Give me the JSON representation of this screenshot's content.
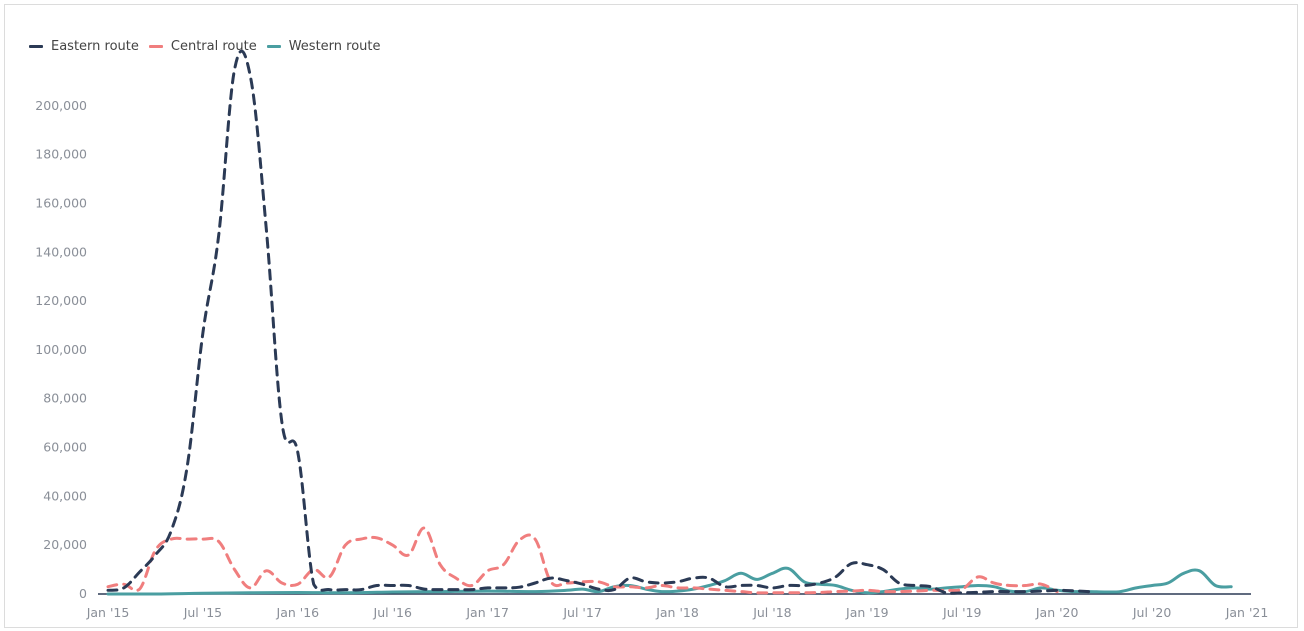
{
  "chart_data": {
    "type": "line",
    "title": "",
    "xlabel": "",
    "ylabel": "",
    "ylim": [
      0,
      220000
    ],
    "yticks": [
      0,
      20000,
      40000,
      60000,
      80000,
      100000,
      120000,
      140000,
      160000,
      180000,
      200000
    ],
    "ytick_labels": [
      "0",
      "20,000",
      "40,000",
      "60,000",
      "80,000",
      "100,000",
      "120,000",
      "140,000",
      "160,000",
      "180,000",
      "200,000"
    ],
    "xlim": [
      0,
      72
    ],
    "xticks": [
      {
        "x": 0,
        "label": "Jan '15"
      },
      {
        "x": 6,
        "label": "Jul '15"
      },
      {
        "x": 12,
        "label": "Jan '16"
      },
      {
        "x": 18,
        "label": "Jul '16"
      },
      {
        "x": 24,
        "label": "Jan '17"
      },
      {
        "x": 30,
        "label": "Jul '17"
      },
      {
        "x": 36,
        "label": "Jan '18"
      },
      {
        "x": 42,
        "label": "Jul '18"
      },
      {
        "x": 48,
        "label": "Jan '19"
      },
      {
        "x": 54,
        "label": "Jul '19"
      },
      {
        "x": 60,
        "label": "Jan '20"
      },
      {
        "x": 66,
        "label": "Jul '20"
      },
      {
        "x": 72,
        "label": "Jan '21"
      }
    ],
    "legend_position": "top-left",
    "grid": false,
    "series": [
      {
        "name": "Eastern route",
        "color": "#2b3a55",
        "dash": "dashed",
        "points": [
          [
            0,
            1500
          ],
          [
            1,
            2500
          ],
          [
            2,
            9000
          ],
          [
            3,
            16000
          ],
          [
            4,
            26000
          ],
          [
            5,
            52000
          ],
          [
            6,
            107000
          ],
          [
            7,
            147000
          ],
          [
            8,
            215000
          ],
          [
            9,
            212000
          ],
          [
            10,
            150000
          ],
          [
            11,
            70000
          ],
          [
            12,
            58000
          ],
          [
            13,
            4000
          ],
          [
            14,
            1800
          ],
          [
            15,
            1800
          ],
          [
            16,
            1800
          ],
          [
            17,
            3500
          ],
          [
            18,
            3500
          ],
          [
            19,
            3500
          ],
          [
            20,
            2000
          ],
          [
            21,
            1800
          ],
          [
            22,
            1800
          ],
          [
            23,
            1800
          ],
          [
            24,
            2500
          ],
          [
            25,
            2500
          ],
          [
            26,
            2800
          ],
          [
            27,
            4500
          ],
          [
            28,
            6500
          ],
          [
            29,
            5500
          ],
          [
            30,
            4000
          ],
          [
            31,
            2000
          ],
          [
            32,
            1800
          ],
          [
            33,
            6500
          ],
          [
            34,
            5000
          ],
          [
            35,
            4500
          ],
          [
            36,
            5000
          ],
          [
            37,
            6500
          ],
          [
            38,
            6500
          ],
          [
            39,
            3000
          ],
          [
            40,
            3500
          ],
          [
            41,
            3500
          ],
          [
            42,
            2500
          ],
          [
            43,
            3500
          ],
          [
            44,
            3500
          ],
          [
            45,
            4500
          ],
          [
            46,
            7000
          ],
          [
            47,
            12500
          ],
          [
            48,
            12000
          ],
          [
            49,
            10000
          ],
          [
            50,
            4500
          ],
          [
            51,
            3500
          ],
          [
            52,
            3000
          ],
          [
            53,
            500
          ],
          [
            54,
            500
          ],
          [
            55,
            700
          ],
          [
            56,
            1000
          ],
          [
            57,
            1000
          ],
          [
            58,
            1000
          ],
          [
            59,
            1200
          ],
          [
            60,
            1500
          ],
          [
            61,
            1300
          ],
          [
            62,
            1000
          ]
        ]
      },
      {
        "name": "Central route",
        "color": "#f07e7e",
        "dash": "dashed",
        "points": [
          [
            0,
            3000
          ],
          [
            1,
            4000
          ],
          [
            2,
            2000
          ],
          [
            3,
            18000
          ],
          [
            4,
            22500
          ],
          [
            5,
            22500
          ],
          [
            6,
            22500
          ],
          [
            7,
            21500
          ],
          [
            8,
            10000
          ],
          [
            9,
            2500
          ],
          [
            10,
            9500
          ],
          [
            11,
            4500
          ],
          [
            12,
            4000
          ],
          [
            13,
            10000
          ],
          [
            14,
            7000
          ],
          [
            15,
            20000
          ],
          [
            16,
            22500
          ],
          [
            17,
            23000
          ],
          [
            18,
            20000
          ],
          [
            19,
            16000
          ],
          [
            20,
            27000
          ],
          [
            21,
            12000
          ],
          [
            22,
            6500
          ],
          [
            23,
            3500
          ],
          [
            24,
            9500
          ],
          [
            25,
            12000
          ],
          [
            26,
            22000
          ],
          [
            27,
            22500
          ],
          [
            28,
            5000
          ],
          [
            29,
            4500
          ],
          [
            30,
            5000
          ],
          [
            31,
            5000
          ],
          [
            32,
            3000
          ],
          [
            33,
            3000
          ],
          [
            34,
            2500
          ],
          [
            35,
            3500
          ],
          [
            36,
            2500
          ],
          [
            37,
            2500
          ],
          [
            38,
            2000
          ],
          [
            39,
            1500
          ],
          [
            40,
            1000
          ],
          [
            41,
            500
          ],
          [
            42,
            500
          ],
          [
            43,
            500
          ],
          [
            44,
            500
          ],
          [
            45,
            600
          ],
          [
            46,
            1000
          ],
          [
            47,
            1200
          ],
          [
            48,
            1500
          ],
          [
            49,
            1000
          ],
          [
            50,
            1000
          ],
          [
            51,
            1200
          ],
          [
            52,
            1500
          ],
          [
            53,
            1500
          ],
          [
            54,
            2000
          ],
          [
            55,
            7000
          ],
          [
            56,
            4500
          ],
          [
            57,
            3500
          ],
          [
            58,
            3500
          ],
          [
            59,
            4000
          ],
          [
            60,
            1000
          ]
        ]
      },
      {
        "name": "Western route",
        "color": "#4a9ea1",
        "dash": "solid",
        "points": [
          [
            0,
            0
          ],
          [
            3,
            0
          ],
          [
            6,
            300
          ],
          [
            9,
            500
          ],
          [
            12,
            600
          ],
          [
            15,
            500
          ],
          [
            18,
            800
          ],
          [
            21,
            1000
          ],
          [
            24,
            1200
          ],
          [
            27,
            1000
          ],
          [
            29,
            1500
          ],
          [
            30,
            2000
          ],
          [
            31,
            1000
          ],
          [
            32,
            3000
          ],
          [
            33,
            3500
          ],
          [
            34,
            2000
          ],
          [
            35,
            1000
          ],
          [
            36,
            1200
          ],
          [
            37,
            2000
          ],
          [
            38,
            3500
          ],
          [
            39,
            5500
          ],
          [
            40,
            8500
          ],
          [
            41,
            6000
          ],
          [
            42,
            8500
          ],
          [
            43,
            10500
          ],
          [
            44,
            5000
          ],
          [
            45,
            4000
          ],
          [
            46,
            3500
          ],
          [
            47,
            1500
          ],
          [
            48,
            500
          ],
          [
            49,
            1000
          ],
          [
            50,
            2000
          ],
          [
            51,
            2500
          ],
          [
            52,
            2000
          ],
          [
            53,
            2500
          ],
          [
            54,
            3000
          ],
          [
            55,
            3500
          ],
          [
            56,
            3000
          ],
          [
            57,
            1200
          ],
          [
            58,
            1000
          ],
          [
            59,
            2500
          ],
          [
            60,
            1500
          ],
          [
            61,
            1000
          ],
          [
            62,
            1000
          ],
          [
            63,
            800
          ],
          [
            64,
            1000
          ],
          [
            65,
            2500
          ],
          [
            66,
            3500
          ],
          [
            67,
            4500
          ],
          [
            68,
            8500
          ],
          [
            69,
            9500
          ],
          [
            70,
            3500
          ],
          [
            71,
            3000
          ]
        ]
      }
    ]
  }
}
